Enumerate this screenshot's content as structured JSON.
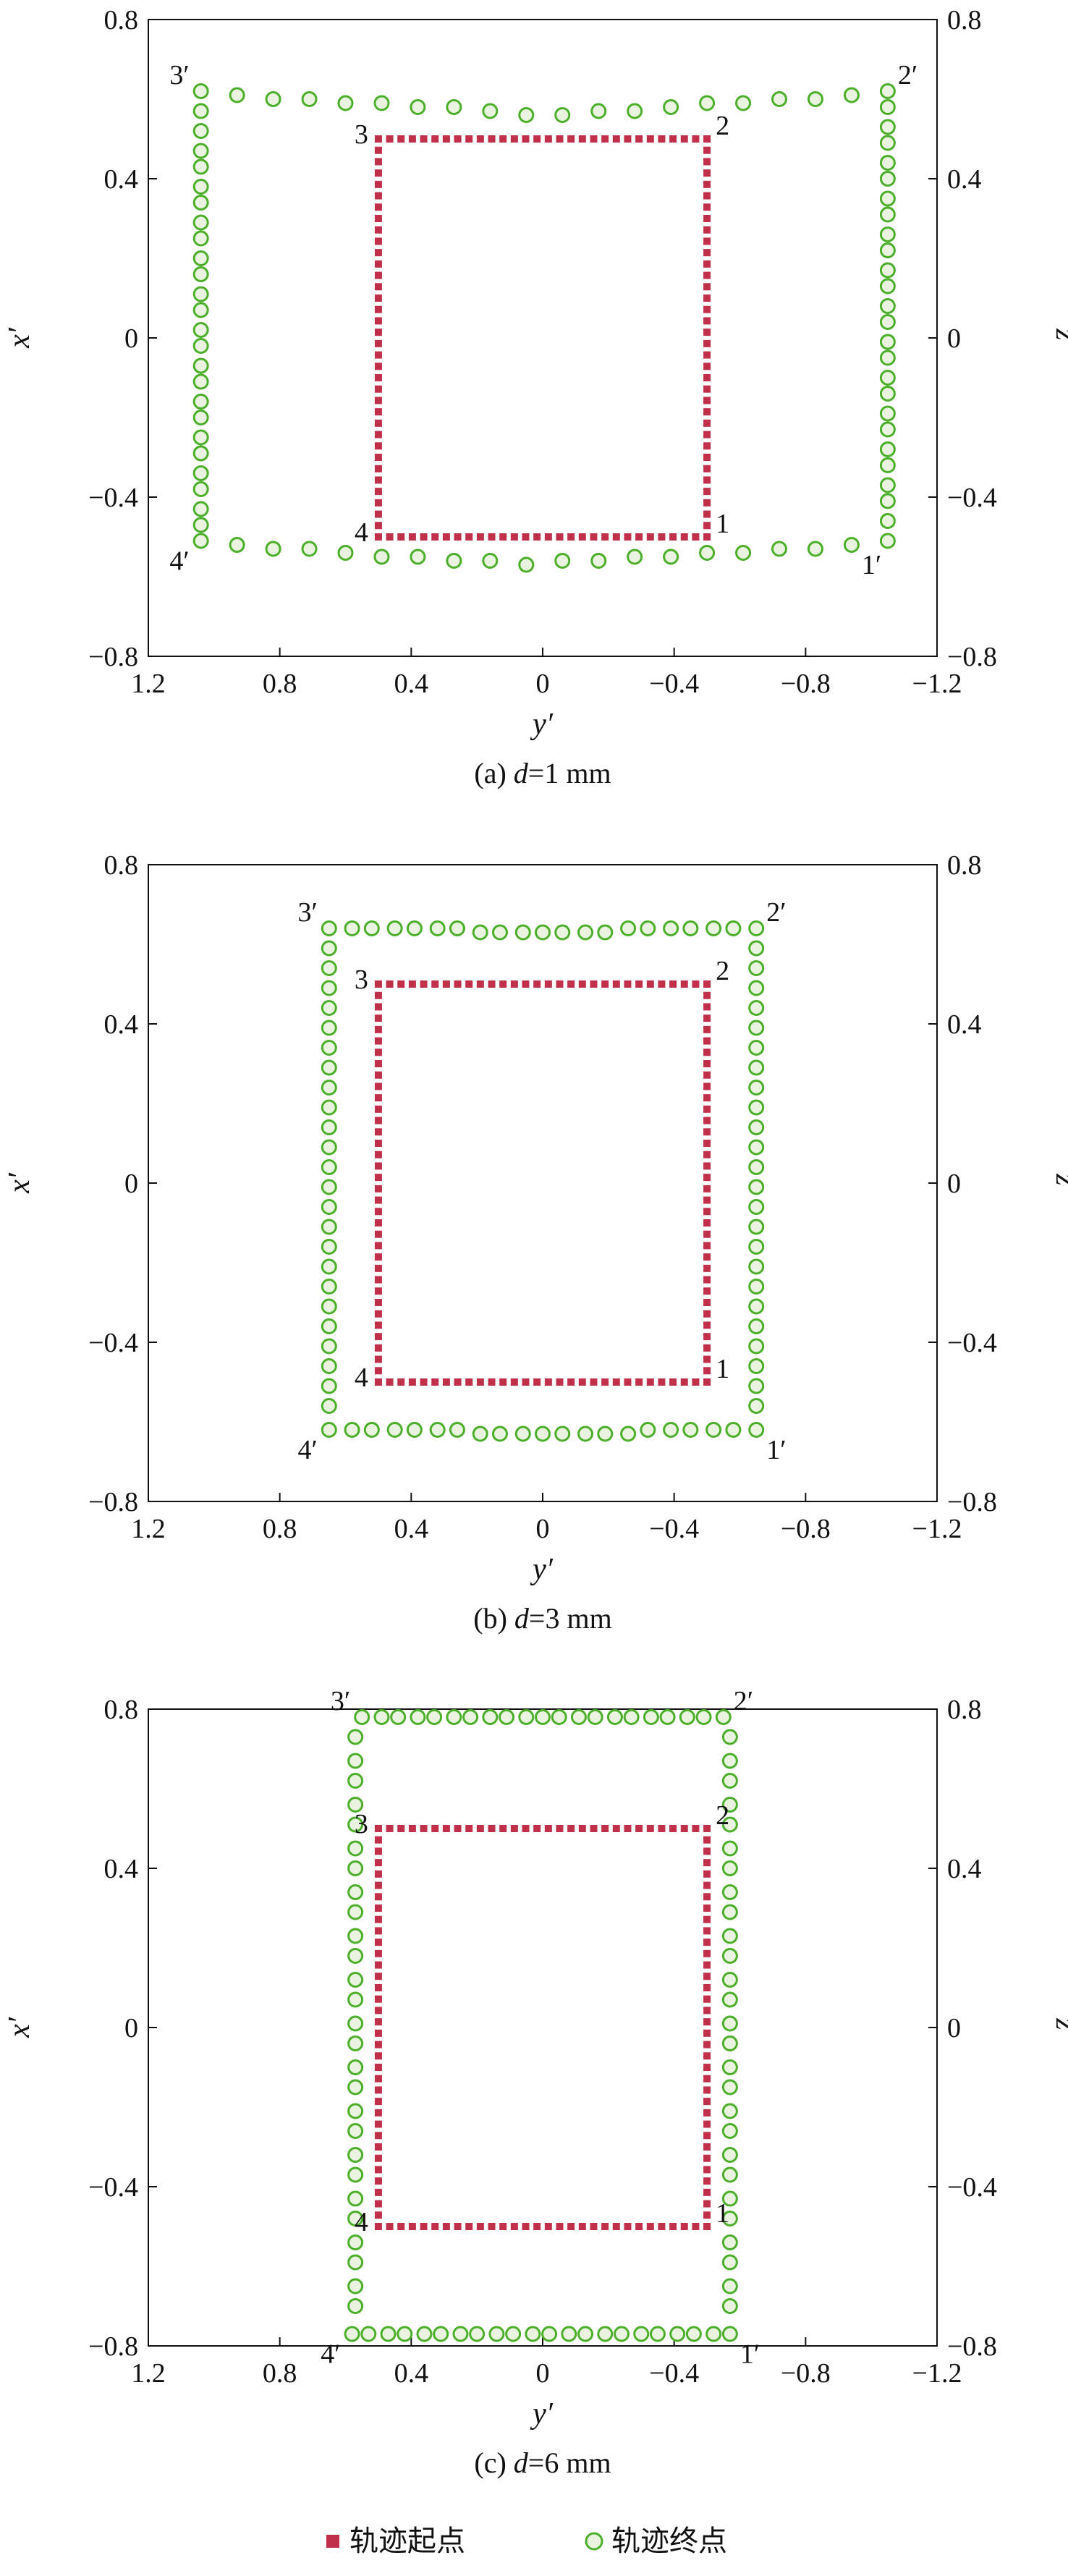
{
  "figure": {
    "legend": {
      "start_label": "轨迹起点",
      "end_label": "轨迹终点"
    },
    "colors": {
      "start_marker": "#c0304a",
      "end_marker_stroke": "#4caf2a",
      "end_marker_fill": "#e9f3df",
      "axes": "#111111"
    }
  },
  "chart_data": [
    {
      "type": "scatter",
      "caption_prefix": "(a) ",
      "caption_var": "d",
      "caption_rest": "=1 mm",
      "xlabel": "y′",
      "ylabel_left": "x′",
      "ylabel_right": "z′",
      "xlim": [
        1.2,
        -1.2
      ],
      "ylim": [
        -0.8,
        0.8
      ],
      "xticks": [
        "1.2",
        "0.8",
        "0.4",
        "0",
        "−0.4",
        "−0.8",
        "−1.2"
      ],
      "yticks": [
        "0.8",
        "0.4",
        "0",
        "−0.4",
        "−0.8"
      ],
      "start_rect": {
        "y_left": 0.5,
        "y_right": -0.5,
        "x_top": 0.5,
        "x_bottom": -0.5
      },
      "start_corner_labels": [
        "1",
        "2",
        "3",
        "4"
      ],
      "end_corner_labels": [
        "1′",
        "2′",
        "3′",
        "4′"
      ],
      "end_path": {
        "top": [
          [
            1.04,
            0.62
          ],
          [
            0.93,
            0.61
          ],
          [
            0.82,
            0.6
          ],
          [
            0.71,
            0.6
          ],
          [
            0.6,
            0.59
          ],
          [
            0.49,
            0.59
          ],
          [
            0.38,
            0.58
          ],
          [
            0.27,
            0.58
          ],
          [
            0.16,
            0.57
          ],
          [
            0.05,
            0.56
          ],
          [
            -0.06,
            0.56
          ],
          [
            -0.17,
            0.57
          ],
          [
            -0.28,
            0.57
          ],
          [
            -0.39,
            0.58
          ],
          [
            -0.5,
            0.59
          ],
          [
            -0.61,
            0.59
          ],
          [
            -0.72,
            0.6
          ],
          [
            -0.83,
            0.6
          ],
          [
            -0.94,
            0.61
          ],
          [
            -1.05,
            0.62
          ]
        ],
        "right": [
          [
            -1.05,
            0.58
          ],
          [
            -1.05,
            0.53
          ],
          [
            -1.05,
            0.49
          ],
          [
            -1.05,
            0.44
          ],
          [
            -1.05,
            0.4
          ],
          [
            -1.05,
            0.35
          ],
          [
            -1.05,
            0.31
          ],
          [
            -1.05,
            0.26
          ],
          [
            -1.05,
            0.22
          ],
          [
            -1.05,
            0.17
          ],
          [
            -1.05,
            0.13
          ],
          [
            -1.05,
            0.08
          ],
          [
            -1.05,
            0.04
          ],
          [
            -1.05,
            -0.01
          ],
          [
            -1.05,
            -0.05
          ],
          [
            -1.05,
            -0.1
          ],
          [
            -1.05,
            -0.14
          ],
          [
            -1.05,
            -0.19
          ],
          [
            -1.05,
            -0.23
          ],
          [
            -1.05,
            -0.28
          ],
          [
            -1.05,
            -0.32
          ],
          [
            -1.05,
            -0.37
          ],
          [
            -1.05,
            -0.41
          ],
          [
            -1.05,
            -0.46
          ],
          [
            -1.05,
            -0.51
          ]
        ],
        "bottom": [
          [
            -0.94,
            -0.52
          ],
          [
            -0.83,
            -0.53
          ],
          [
            -0.72,
            -0.53
          ],
          [
            -0.61,
            -0.54
          ],
          [
            -0.5,
            -0.54
          ],
          [
            -0.39,
            -0.55
          ],
          [
            -0.28,
            -0.55
          ],
          [
            -0.17,
            -0.56
          ],
          [
            -0.06,
            -0.56
          ],
          [
            0.05,
            -0.57
          ],
          [
            0.16,
            -0.56
          ],
          [
            0.27,
            -0.56
          ],
          [
            0.38,
            -0.55
          ],
          [
            0.49,
            -0.55
          ],
          [
            0.6,
            -0.54
          ],
          [
            0.71,
            -0.53
          ],
          [
            0.82,
            -0.53
          ],
          [
            0.93,
            -0.52
          ],
          [
            1.04,
            -0.51
          ]
        ],
        "left": [
          [
            1.04,
            -0.47
          ],
          [
            1.04,
            -0.43
          ],
          [
            1.04,
            -0.38
          ],
          [
            1.04,
            -0.34
          ],
          [
            1.04,
            -0.29
          ],
          [
            1.04,
            -0.25
          ],
          [
            1.04,
            -0.2
          ],
          [
            1.04,
            -0.16
          ],
          [
            1.04,
            -0.11
          ],
          [
            1.04,
            -0.07
          ],
          [
            1.04,
            -0.02
          ],
          [
            1.04,
            0.02
          ],
          [
            1.04,
            0.07
          ],
          [
            1.04,
            0.11
          ],
          [
            1.04,
            0.16
          ],
          [
            1.04,
            0.2
          ],
          [
            1.04,
            0.25
          ],
          [
            1.04,
            0.29
          ],
          [
            1.04,
            0.34
          ],
          [
            1.04,
            0.38
          ],
          [
            1.04,
            0.43
          ],
          [
            1.04,
            0.47
          ],
          [
            1.04,
            0.52
          ],
          [
            1.04,
            0.57
          ]
        ]
      }
    },
    {
      "type": "scatter",
      "caption_prefix": "(b) ",
      "caption_var": "d",
      "caption_rest": "=3 mm",
      "xlabel": "y′",
      "ylabel_left": "x′",
      "ylabel_right": "z′",
      "xlim": [
        1.2,
        -1.2
      ],
      "ylim": [
        -0.8,
        0.8
      ],
      "xticks": [
        "1.2",
        "0.8",
        "0.4",
        "0",
        "−0.4",
        "−0.8",
        "−1.2"
      ],
      "yticks": [
        "0.8",
        "0.4",
        "0",
        "−0.4",
        "−0.8"
      ],
      "start_rect": {
        "y_left": 0.5,
        "y_right": -0.5,
        "x_top": 0.5,
        "x_bottom": -0.5
      },
      "start_corner_labels": [
        "1",
        "2",
        "3",
        "4"
      ],
      "end_corner_labels": [
        "1′",
        "2′",
        "3′",
        "4′"
      ],
      "end_path": {
        "top": [
          [
            0.65,
            0.64
          ],
          [
            0.58,
            0.64
          ],
          [
            0.52,
            0.64
          ],
          [
            0.45,
            0.64
          ],
          [
            0.39,
            0.64
          ],
          [
            0.32,
            0.64
          ],
          [
            0.26,
            0.64
          ],
          [
            0.19,
            0.63
          ],
          [
            0.13,
            0.63
          ],
          [
            0.06,
            0.63
          ],
          [
            0.0,
            0.63
          ],
          [
            -0.06,
            0.63
          ],
          [
            -0.13,
            0.63
          ],
          [
            -0.19,
            0.63
          ],
          [
            -0.26,
            0.64
          ],
          [
            -0.32,
            0.64
          ],
          [
            -0.39,
            0.64
          ],
          [
            -0.45,
            0.64
          ],
          [
            -0.52,
            0.64
          ],
          [
            -0.58,
            0.64
          ],
          [
            -0.65,
            0.64
          ]
        ],
        "right": [
          [
            -0.65,
            0.59
          ],
          [
            -0.65,
            0.54
          ],
          [
            -0.65,
            0.49
          ],
          [
            -0.65,
            0.44
          ],
          [
            -0.65,
            0.39
          ],
          [
            -0.65,
            0.34
          ],
          [
            -0.65,
            0.29
          ],
          [
            -0.65,
            0.24
          ],
          [
            -0.65,
            0.19
          ],
          [
            -0.65,
            0.14
          ],
          [
            -0.65,
            0.09
          ],
          [
            -0.65,
            0.04
          ],
          [
            -0.65,
            -0.01
          ],
          [
            -0.65,
            -0.06
          ],
          [
            -0.65,
            -0.11
          ],
          [
            -0.65,
            -0.16
          ],
          [
            -0.65,
            -0.21
          ],
          [
            -0.65,
            -0.26
          ],
          [
            -0.65,
            -0.31
          ],
          [
            -0.65,
            -0.36
          ],
          [
            -0.65,
            -0.41
          ],
          [
            -0.65,
            -0.46
          ],
          [
            -0.65,
            -0.51
          ],
          [
            -0.65,
            -0.56
          ]
        ],
        "bottom": [
          [
            -0.65,
            -0.62
          ],
          [
            -0.58,
            -0.62
          ],
          [
            -0.52,
            -0.62
          ],
          [
            -0.45,
            -0.62
          ],
          [
            -0.39,
            -0.62
          ],
          [
            -0.32,
            -0.62
          ],
          [
            -0.26,
            -0.63
          ],
          [
            -0.19,
            -0.63
          ],
          [
            -0.13,
            -0.63
          ],
          [
            -0.06,
            -0.63
          ],
          [
            0.0,
            -0.63
          ],
          [
            0.06,
            -0.63
          ],
          [
            0.13,
            -0.63
          ],
          [
            0.19,
            -0.63
          ],
          [
            0.26,
            -0.62
          ],
          [
            0.32,
            -0.62
          ],
          [
            0.39,
            -0.62
          ],
          [
            0.45,
            -0.62
          ],
          [
            0.52,
            -0.62
          ],
          [
            0.58,
            -0.62
          ],
          [
            0.65,
            -0.62
          ]
        ],
        "left": [
          [
            0.65,
            -0.56
          ],
          [
            0.65,
            -0.51
          ],
          [
            0.65,
            -0.46
          ],
          [
            0.65,
            -0.41
          ],
          [
            0.65,
            -0.36
          ],
          [
            0.65,
            -0.31
          ],
          [
            0.65,
            -0.26
          ],
          [
            0.65,
            -0.21
          ],
          [
            0.65,
            -0.16
          ],
          [
            0.65,
            -0.11
          ],
          [
            0.65,
            -0.06
          ],
          [
            0.65,
            -0.01
          ],
          [
            0.65,
            0.04
          ],
          [
            0.65,
            0.09
          ],
          [
            0.65,
            0.14
          ],
          [
            0.65,
            0.19
          ],
          [
            0.65,
            0.24
          ],
          [
            0.65,
            0.29
          ],
          [
            0.65,
            0.34
          ],
          [
            0.65,
            0.39
          ],
          [
            0.65,
            0.44
          ],
          [
            0.65,
            0.49
          ],
          [
            0.65,
            0.54
          ],
          [
            0.65,
            0.59
          ]
        ]
      }
    },
    {
      "type": "scatter",
      "caption_prefix": "(c) ",
      "caption_var": "d",
      "caption_rest": "=6 mm",
      "xlabel": "y′",
      "ylabel_left": "x′",
      "ylabel_right": "z′",
      "xlim": [
        1.2,
        -1.2
      ],
      "ylim": [
        -0.8,
        0.8
      ],
      "xticks": [
        "1.2",
        "0.8",
        "0.4",
        "0",
        "−0.4",
        "−0.8",
        "−1.2"
      ],
      "yticks": [
        "0.8",
        "0.4",
        "0",
        "−0.4",
        "−0.8"
      ],
      "start_rect": {
        "y_left": 0.5,
        "y_right": -0.5,
        "x_top": 0.5,
        "x_bottom": -0.5
      },
      "start_corner_labels": [
        "1",
        "2",
        "3",
        "4"
      ],
      "end_corner_labels": [
        "1′",
        "2′",
        "3′",
        "4′"
      ],
      "end_path": {
        "top": [
          [
            0.55,
            0.78
          ],
          [
            0.49,
            0.78
          ],
          [
            0.44,
            0.78
          ],
          [
            0.38,
            0.78
          ],
          [
            0.33,
            0.78
          ],
          [
            0.27,
            0.78
          ],
          [
            0.22,
            0.78
          ],
          [
            0.16,
            0.78
          ],
          [
            0.11,
            0.78
          ],
          [
            0.05,
            0.78
          ],
          [
            0.0,
            0.78
          ],
          [
            -0.05,
            0.78
          ],
          [
            -0.11,
            0.78
          ],
          [
            -0.16,
            0.78
          ],
          [
            -0.22,
            0.78
          ],
          [
            -0.27,
            0.78
          ],
          [
            -0.33,
            0.78
          ],
          [
            -0.38,
            0.78
          ],
          [
            -0.44,
            0.78
          ],
          [
            -0.49,
            0.78
          ],
          [
            -0.55,
            0.78
          ]
        ],
        "right": [
          [
            -0.57,
            0.73
          ],
          [
            -0.57,
            0.67
          ],
          [
            -0.57,
            0.62
          ],
          [
            -0.57,
            0.56
          ],
          [
            -0.57,
            0.51
          ],
          [
            -0.57,
            0.45
          ],
          [
            -0.57,
            0.4
          ],
          [
            -0.57,
            0.34
          ],
          [
            -0.57,
            0.29
          ],
          [
            -0.57,
            0.23
          ],
          [
            -0.57,
            0.18
          ],
          [
            -0.57,
            0.12
          ],
          [
            -0.57,
            0.07
          ],
          [
            -0.57,
            0.01
          ],
          [
            -0.57,
            -0.04
          ],
          [
            -0.57,
            -0.1
          ],
          [
            -0.57,
            -0.15
          ],
          [
            -0.57,
            -0.21
          ],
          [
            -0.57,
            -0.26
          ],
          [
            -0.57,
            -0.32
          ],
          [
            -0.57,
            -0.37
          ],
          [
            -0.57,
            -0.43
          ],
          [
            -0.57,
            -0.48
          ],
          [
            -0.57,
            -0.54
          ],
          [
            -0.57,
            -0.59
          ],
          [
            -0.57,
            -0.65
          ],
          [
            -0.57,
            -0.7
          ]
        ],
        "bottom": [
          [
            -0.57,
            -0.77
          ],
          [
            -0.52,
            -0.77
          ],
          [
            -0.46,
            -0.77
          ],
          [
            -0.41,
            -0.77
          ],
          [
            -0.35,
            -0.77
          ],
          [
            -0.3,
            -0.77
          ],
          [
            -0.24,
            -0.77
          ],
          [
            -0.19,
            -0.77
          ],
          [
            -0.13,
            -0.77
          ],
          [
            -0.08,
            -0.77
          ],
          [
            -0.02,
            -0.77
          ],
          [
            0.03,
            -0.77
          ],
          [
            0.09,
            -0.77
          ],
          [
            0.14,
            -0.77
          ],
          [
            0.2,
            -0.77
          ],
          [
            0.25,
            -0.77
          ],
          [
            0.31,
            -0.77
          ],
          [
            0.36,
            -0.77
          ],
          [
            0.42,
            -0.77
          ],
          [
            0.47,
            -0.77
          ],
          [
            0.53,
            -0.77
          ],
          [
            0.58,
            -0.77
          ]
        ],
        "left": [
          [
            0.57,
            -0.7
          ],
          [
            0.57,
            -0.65
          ],
          [
            0.57,
            -0.59
          ],
          [
            0.57,
            -0.54
          ],
          [
            0.57,
            -0.48
          ],
          [
            0.57,
            -0.43
          ],
          [
            0.57,
            -0.37
          ],
          [
            0.57,
            -0.32
          ],
          [
            0.57,
            -0.26
          ],
          [
            0.57,
            -0.21
          ],
          [
            0.57,
            -0.15
          ],
          [
            0.57,
            -0.1
          ],
          [
            0.57,
            -0.04
          ],
          [
            0.57,
            0.01
          ],
          [
            0.57,
            0.07
          ],
          [
            0.57,
            0.12
          ],
          [
            0.57,
            0.18
          ],
          [
            0.57,
            0.23
          ],
          [
            0.57,
            0.29
          ],
          [
            0.57,
            0.34
          ],
          [
            0.57,
            0.4
          ],
          [
            0.57,
            0.45
          ],
          [
            0.57,
            0.51
          ],
          [
            0.57,
            0.56
          ],
          [
            0.57,
            0.62
          ],
          [
            0.57,
            0.67
          ],
          [
            0.57,
            0.73
          ]
        ]
      }
    }
  ]
}
